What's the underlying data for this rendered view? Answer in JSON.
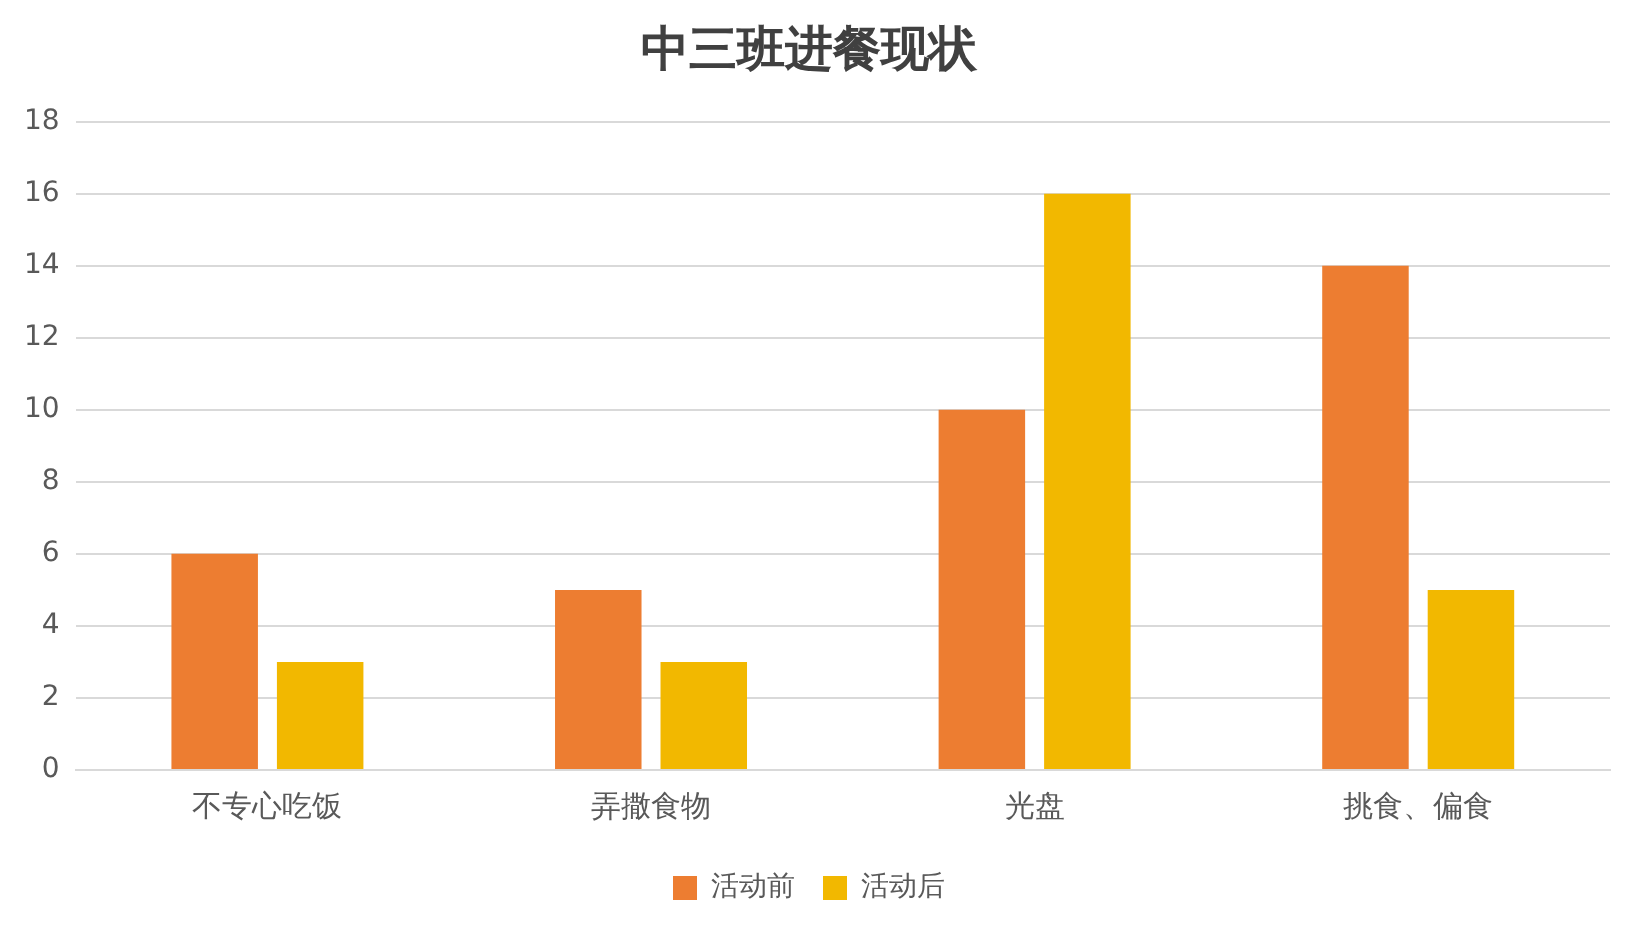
{
  "chart_data": {
    "type": "bar",
    "title": "中三班进餐现状",
    "categories": [
      "不专心吃饭",
      "弄撒食物",
      "光盘",
      "挑食、偏食"
    ],
    "series": [
      {
        "name": "活动前",
        "color": "#ed7d31",
        "values": [
          6,
          5,
          10,
          14
        ]
      },
      {
        "name": "活动后",
        "color": "#f2b800",
        "values": [
          3,
          3,
          16,
          5
        ]
      }
    ],
    "ylim": [
      0,
      18
    ],
    "yticks": [
      0,
      2,
      4,
      6,
      8,
      10,
      12,
      14,
      16,
      18
    ],
    "grid": "y",
    "legend": "bottom"
  }
}
